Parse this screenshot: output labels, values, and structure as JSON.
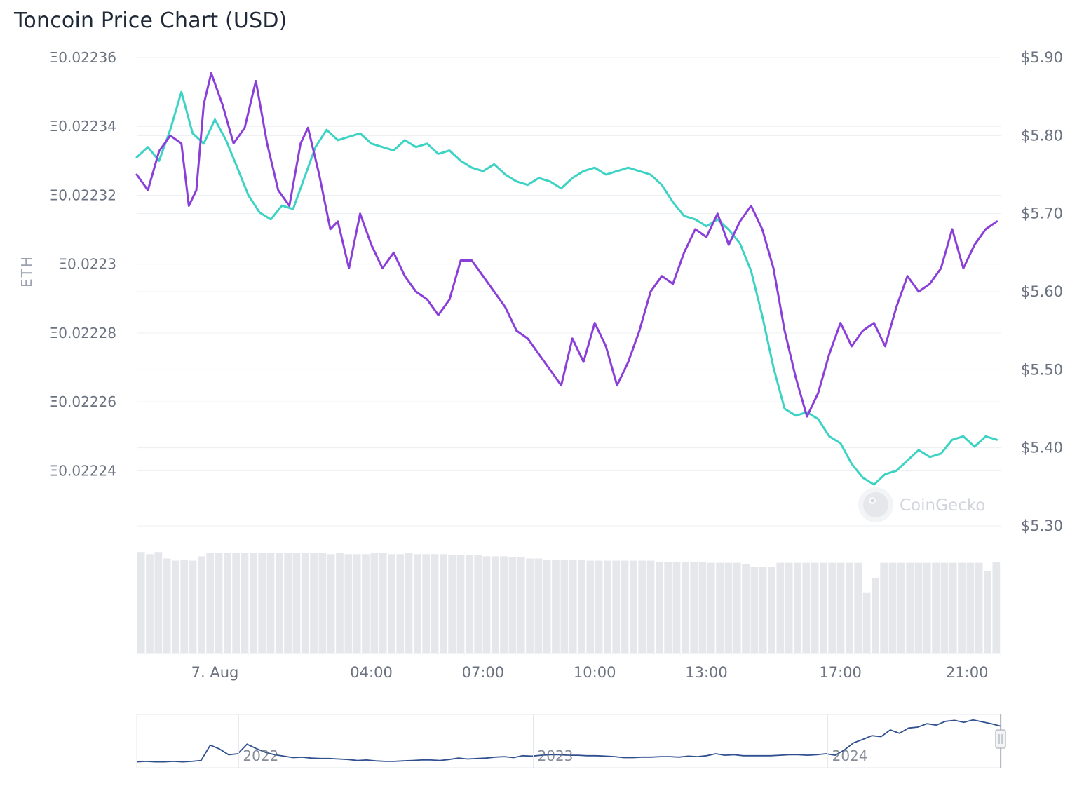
{
  "title": "Toncoin Price Chart (USD)",
  "chart_data": {
    "type": "line",
    "title": "Toncoin Price Chart (USD)",
    "left_axis": {
      "label": "ETH",
      "ticks": [
        "Ξ0.02236",
        "Ξ0.02234",
        "Ξ0.02232",
        "Ξ0.0223",
        "Ξ0.02228",
        "Ξ0.02226",
        "Ξ0.02224"
      ],
      "tick_values": [
        0.02236,
        0.02234,
        0.02232,
        0.0223,
        0.02228,
        0.02226,
        0.02224
      ],
      "range": [
        0.022224,
        0.02236
      ]
    },
    "right_axis": {
      "ticks": [
        "$5.90",
        "$5.80",
        "$5.70",
        "$5.60",
        "$5.50",
        "$5.40",
        "$5.30"
      ],
      "tick_values": [
        5.9,
        5.8,
        5.7,
        5.6,
        5.5,
        5.4,
        5.3
      ],
      "range": [
        5.3,
        5.9
      ]
    },
    "x_axis": {
      "ticks": [
        "7. Aug",
        "04:00",
        "07:00",
        "10:00",
        "13:00",
        "17:00",
        "21:00"
      ],
      "tick_hours": [
        1.8,
        6.0,
        9.0,
        12.0,
        15.0,
        18.6,
        22.0
      ],
      "range_hours": [
        -0.3,
        22.9
      ]
    },
    "grid": true,
    "watermark": "CoinGecko",
    "series": [
      {
        "axis": "right",
        "color": "#8b3fd9",
        "points": [
          [
            -0.3,
            5.75
          ],
          [
            0.0,
            5.73
          ],
          [
            0.3,
            5.78
          ],
          [
            0.6,
            5.8
          ],
          [
            0.9,
            5.79
          ],
          [
            1.1,
            5.71
          ],
          [
            1.3,
            5.73
          ],
          [
            1.5,
            5.84
          ],
          [
            1.7,
            5.88
          ],
          [
            2.0,
            5.84
          ],
          [
            2.3,
            5.79
          ],
          [
            2.6,
            5.81
          ],
          [
            2.9,
            5.87
          ],
          [
            3.2,
            5.79
          ],
          [
            3.5,
            5.73
          ],
          [
            3.8,
            5.71
          ],
          [
            4.1,
            5.79
          ],
          [
            4.3,
            5.81
          ],
          [
            4.6,
            5.75
          ],
          [
            4.9,
            5.68
          ],
          [
            5.1,
            5.69
          ],
          [
            5.4,
            5.63
          ],
          [
            5.7,
            5.7
          ],
          [
            6.0,
            5.66
          ],
          [
            6.3,
            5.63
          ],
          [
            6.6,
            5.65
          ],
          [
            6.9,
            5.62
          ],
          [
            7.2,
            5.6
          ],
          [
            7.5,
            5.59
          ],
          [
            7.8,
            5.57
          ],
          [
            8.1,
            5.59
          ],
          [
            8.4,
            5.64
          ],
          [
            8.7,
            5.64
          ],
          [
            9.0,
            5.62
          ],
          [
            9.3,
            5.6
          ],
          [
            9.6,
            5.58
          ],
          [
            9.9,
            5.55
          ],
          [
            10.2,
            5.54
          ],
          [
            10.5,
            5.52
          ],
          [
            10.8,
            5.5
          ],
          [
            11.1,
            5.48
          ],
          [
            11.4,
            5.54
          ],
          [
            11.7,
            5.51
          ],
          [
            12.0,
            5.56
          ],
          [
            12.3,
            5.53
          ],
          [
            12.6,
            5.48
          ],
          [
            12.9,
            5.51
          ],
          [
            13.2,
            5.55
          ],
          [
            13.5,
            5.6
          ],
          [
            13.8,
            5.62
          ],
          [
            14.1,
            5.61
          ],
          [
            14.4,
            5.65
          ],
          [
            14.7,
            5.68
          ],
          [
            15.0,
            5.67
          ],
          [
            15.3,
            5.7
          ],
          [
            15.6,
            5.66
          ],
          [
            15.9,
            5.69
          ],
          [
            16.2,
            5.71
          ],
          [
            16.5,
            5.68
          ],
          [
            16.8,
            5.63
          ],
          [
            17.1,
            5.55
          ],
          [
            17.4,
            5.49
          ],
          [
            17.7,
            5.44
          ],
          [
            18.0,
            5.47
          ],
          [
            18.3,
            5.52
          ],
          [
            18.6,
            5.56
          ],
          [
            18.9,
            5.53
          ],
          [
            19.2,
            5.55
          ],
          [
            19.5,
            5.56
          ],
          [
            19.8,
            5.53
          ],
          [
            20.1,
            5.58
          ],
          [
            20.4,
            5.62
          ],
          [
            20.7,
            5.6
          ],
          [
            21.0,
            5.61
          ],
          [
            21.3,
            5.63
          ],
          [
            21.6,
            5.68
          ],
          [
            21.9,
            5.63
          ],
          [
            22.2,
            5.66
          ],
          [
            22.5,
            5.68
          ],
          [
            22.8,
            5.69
          ]
        ]
      },
      {
        "axis": "left",
        "color": "#3dd3c4",
        "points": [
          [
            -0.3,
            0.022331
          ],
          [
            0.0,
            0.022334
          ],
          [
            0.3,
            0.02233
          ],
          [
            0.6,
            0.022339
          ],
          [
            0.9,
            0.02235
          ],
          [
            1.2,
            0.022338
          ],
          [
            1.5,
            0.022335
          ],
          [
            1.8,
            0.022342
          ],
          [
            2.1,
            0.022336
          ],
          [
            2.4,
            0.022328
          ],
          [
            2.7,
            0.02232
          ],
          [
            3.0,
            0.022315
          ],
          [
            3.3,
            0.022313
          ],
          [
            3.6,
            0.022317
          ],
          [
            3.9,
            0.022316
          ],
          [
            4.2,
            0.022325
          ],
          [
            4.5,
            0.022334
          ],
          [
            4.8,
            0.022339
          ],
          [
            5.1,
            0.022336
          ],
          [
            5.4,
            0.022337
          ],
          [
            5.7,
            0.022338
          ],
          [
            6.0,
            0.022335
          ],
          [
            6.3,
            0.022334
          ],
          [
            6.6,
            0.022333
          ],
          [
            6.9,
            0.022336
          ],
          [
            7.2,
            0.022334
          ],
          [
            7.5,
            0.022335
          ],
          [
            7.8,
            0.022332
          ],
          [
            8.1,
            0.022333
          ],
          [
            8.4,
            0.02233
          ],
          [
            8.7,
            0.022328
          ],
          [
            9.0,
            0.022327
          ],
          [
            9.3,
            0.022329
          ],
          [
            9.6,
            0.022326
          ],
          [
            9.9,
            0.022324
          ],
          [
            10.2,
            0.022323
          ],
          [
            10.5,
            0.022325
          ],
          [
            10.8,
            0.022324
          ],
          [
            11.1,
            0.022322
          ],
          [
            11.4,
            0.022325
          ],
          [
            11.7,
            0.022327
          ],
          [
            12.0,
            0.022328
          ],
          [
            12.3,
            0.022326
          ],
          [
            12.6,
            0.022327
          ],
          [
            12.9,
            0.022328
          ],
          [
            13.2,
            0.022327
          ],
          [
            13.5,
            0.022326
          ],
          [
            13.8,
            0.022323
          ],
          [
            14.1,
            0.022318
          ],
          [
            14.4,
            0.022314
          ],
          [
            14.7,
            0.022313
          ],
          [
            15.0,
            0.022311
          ],
          [
            15.3,
            0.022313
          ],
          [
            15.6,
            0.02231
          ],
          [
            15.9,
            0.022306
          ],
          [
            16.2,
            0.022298
          ],
          [
            16.5,
            0.022285
          ],
          [
            16.8,
            0.02227
          ],
          [
            17.1,
            0.022258
          ],
          [
            17.4,
            0.022256
          ],
          [
            17.7,
            0.022257
          ],
          [
            18.0,
            0.022255
          ],
          [
            18.3,
            0.02225
          ],
          [
            18.6,
            0.022248
          ],
          [
            18.9,
            0.022242
          ],
          [
            19.2,
            0.022238
          ],
          [
            19.5,
            0.022236
          ],
          [
            19.8,
            0.022239
          ],
          [
            20.1,
            0.02224
          ],
          [
            20.4,
            0.022243
          ],
          [
            20.7,
            0.022246
          ],
          [
            21.0,
            0.022244
          ],
          [
            21.3,
            0.022245
          ],
          [
            21.6,
            0.022249
          ],
          [
            21.9,
            0.02225
          ],
          [
            22.2,
            0.022247
          ],
          [
            22.5,
            0.02225
          ],
          [
            22.8,
            0.022249
          ]
        ]
      }
    ],
    "volume": {
      "color": "#e5e7eb",
      "values": [
        0.94,
        0.92,
        0.94,
        0.88,
        0.86,
        0.87,
        0.86,
        0.9,
        0.93,
        0.93,
        0.93,
        0.93,
        0.93,
        0.93,
        0.93,
        0.93,
        0.93,
        0.93,
        0.93,
        0.93,
        0.93,
        0.93,
        0.92,
        0.93,
        0.92,
        0.92,
        0.92,
        0.93,
        0.93,
        0.92,
        0.92,
        0.93,
        0.92,
        0.92,
        0.92,
        0.92,
        0.91,
        0.91,
        0.91,
        0.91,
        0.9,
        0.9,
        0.9,
        0.89,
        0.89,
        0.88,
        0.88,
        0.87,
        0.87,
        0.87,
        0.87,
        0.87,
        0.86,
        0.86,
        0.86,
        0.86,
        0.86,
        0.86,
        0.86,
        0.86,
        0.85,
        0.85,
        0.85,
        0.85,
        0.85,
        0.85,
        0.84,
        0.84,
        0.84,
        0.84,
        0.83,
        0.8,
        0.8,
        0.8,
        0.84,
        0.84,
        0.84,
        0.84,
        0.84,
        0.84,
        0.84,
        0.84,
        0.84,
        0.84,
        0.56,
        0.7,
        0.84,
        0.84,
        0.84,
        0.84,
        0.84,
        0.84,
        0.84,
        0.84,
        0.84,
        0.84,
        0.84,
        0.84,
        0.76,
        0.85
      ]
    },
    "navigator": {
      "ticks": [
        "2022",
        "2023",
        "2024"
      ],
      "tick_positions": [
        0.118,
        0.459,
        0.8
      ],
      "color": "#2f4f8f",
      "values": [
        0.05,
        0.06,
        0.05,
        0.05,
        0.06,
        0.05,
        0.06,
        0.08,
        0.4,
        0.32,
        0.2,
        0.22,
        0.42,
        0.33,
        0.25,
        0.2,
        0.17,
        0.14,
        0.15,
        0.13,
        0.12,
        0.12,
        0.11,
        0.1,
        0.08,
        0.09,
        0.07,
        0.06,
        0.06,
        0.07,
        0.08,
        0.09,
        0.09,
        0.08,
        0.1,
        0.13,
        0.11,
        0.12,
        0.13,
        0.15,
        0.16,
        0.14,
        0.18,
        0.17,
        0.19,
        0.2,
        0.2,
        0.19,
        0.19,
        0.18,
        0.18,
        0.17,
        0.16,
        0.14,
        0.14,
        0.15,
        0.15,
        0.16,
        0.16,
        0.15,
        0.17,
        0.16,
        0.18,
        0.22,
        0.19,
        0.2,
        0.18,
        0.18,
        0.18,
        0.18,
        0.19,
        0.2,
        0.2,
        0.19,
        0.2,
        0.22,
        0.19,
        0.3,
        0.45,
        0.52,
        0.6,
        0.58,
        0.72,
        0.65,
        0.76,
        0.78,
        0.85,
        0.82,
        0.9,
        0.92,
        0.88,
        0.93,
        0.89,
        0.85,
        0.8
      ]
    }
  }
}
